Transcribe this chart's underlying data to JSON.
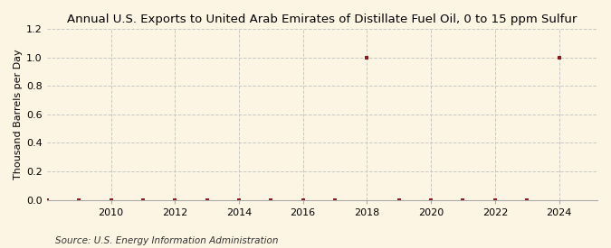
{
  "title": "Annual U.S. Exports to United Arab Emirates of Distillate Fuel Oil, 0 to 15 ppm Sulfur",
  "ylabel": "Thousand Barrels per Day",
  "source": "Source: U.S. Energy Information Administration",
  "background_color": "#fdf5e4",
  "years": [
    2008,
    2009,
    2010,
    2011,
    2012,
    2013,
    2014,
    2015,
    2016,
    2017,
    2018,
    2019,
    2020,
    2021,
    2022,
    2023,
    2024
  ],
  "values": [
    0.0,
    0.0,
    0.0,
    0.0,
    0.0,
    0.0,
    0.0,
    0.0,
    0.0,
    0.0,
    1.0,
    0.0,
    0.0,
    0.0,
    0.0,
    0.0,
    1.0
  ],
  "marker_color": "#8b1a1a",
  "marker_size": 3.5,
  "xlim": [
    2008.0,
    2025.2
  ],
  "ylim": [
    0.0,
    1.2
  ],
  "yticks": [
    0.0,
    0.2,
    0.4,
    0.6,
    0.8,
    1.0,
    1.2
  ],
  "xticks": [
    2010,
    2012,
    2014,
    2016,
    2018,
    2020,
    2022,
    2024
  ],
  "grid_color": "#c8c8c8",
  "title_fontsize": 9.5,
  "label_fontsize": 8,
  "tick_fontsize": 8,
  "source_fontsize": 7.5
}
